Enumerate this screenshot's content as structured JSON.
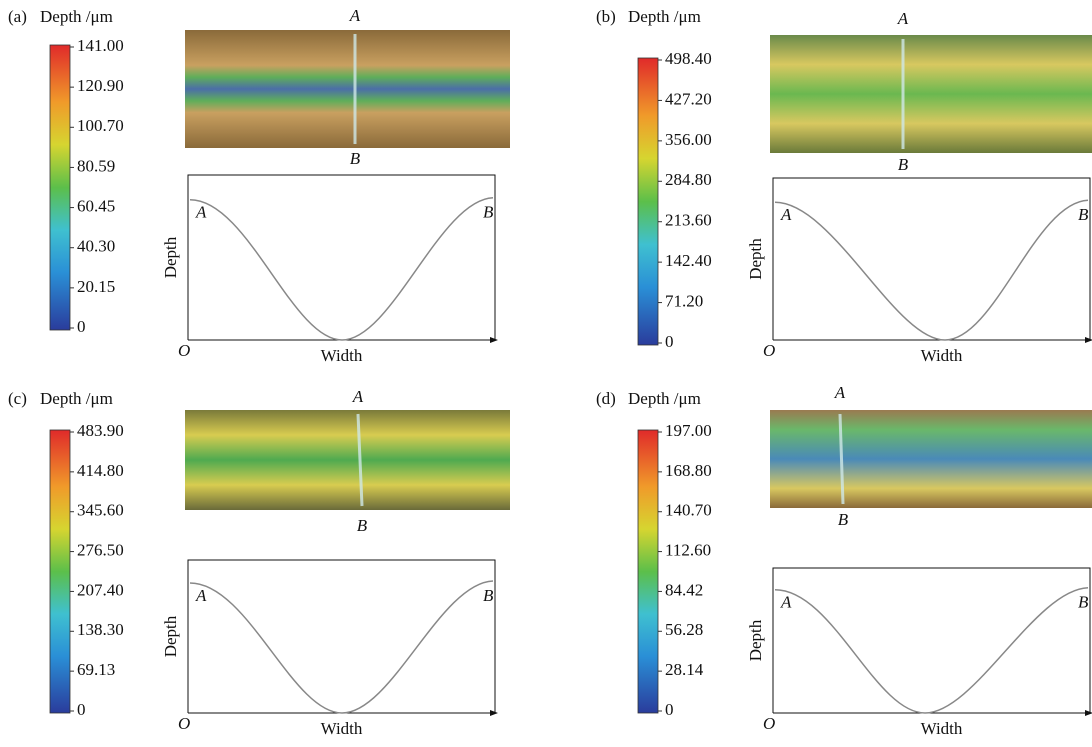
{
  "panels": [
    {
      "label": "(a)",
      "title": "Depth /μm",
      "ticks": [
        "141.00",
        "120.90",
        "100.70",
        "80.59",
        "60.45",
        "40.30",
        "20.15",
        "0"
      ],
      "top": "A",
      "bottom": "B",
      "left": "A",
      "right": "B",
      "y_axis": "Depth",
      "x_axis": "Width",
      "origin": "O"
    },
    {
      "label": "(b)",
      "title": "Depth /μm",
      "ticks": [
        "498.40",
        "427.20",
        "356.00",
        "284.80",
        "213.60",
        "142.40",
        "71.20",
        "0"
      ],
      "top": "A",
      "bottom": "B",
      "left": "A",
      "right": "B",
      "y_axis": "Depth",
      "x_axis": "Width",
      "origin": "O"
    },
    {
      "label": "(c)",
      "title": "Depth /μm",
      "ticks": [
        "483.90",
        "414.80",
        "345.60",
        "276.50",
        "207.40",
        "138.30",
        "69.13",
        "0"
      ],
      "top": "A",
      "bottom": "B",
      "left": "A",
      "right": "B",
      "y_axis": "Depth",
      "x_axis": "Width",
      "origin": "O"
    },
    {
      "label": "(d)",
      "title": "Depth /μm",
      "ticks": [
        "197.00",
        "168.80",
        "140.70",
        "112.60",
        "84.42",
        "56.28",
        "28.14",
        "0"
      ],
      "top": "A",
      "bottom": "B",
      "left": "A",
      "right": "B",
      "y_axis": "Depth",
      "x_axis": "Width",
      "origin": "O"
    }
  ]
}
